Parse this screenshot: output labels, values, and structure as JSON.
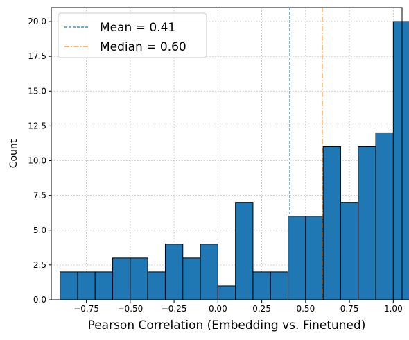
{
  "chart_data": {
    "type": "bar",
    "xlabel": "Pearson Correlation (Embedding vs. Finetuned)",
    "ylabel": "Count",
    "xlim": [
      -0.95,
      1.05
    ],
    "ylim": [
      0,
      21
    ],
    "grid": true,
    "bin_edges": [
      -0.9,
      -0.8,
      -0.7,
      -0.6,
      -0.5,
      -0.4,
      -0.3,
      -0.2,
      -0.1,
      0.0,
      0.1,
      0.2,
      0.3,
      0.4,
      0.5,
      0.6,
      0.7,
      0.8,
      0.9,
      1.0
    ],
    "values": [
      2,
      2,
      2,
      3,
      3,
      2,
      4,
      3,
      4,
      1,
      7,
      2,
      2,
      6,
      6,
      11,
      7,
      11,
      12,
      20
    ],
    "bar_color": "#1f77b4",
    "x_ticks": [
      {
        "value": -0.75,
        "label": "−0.75"
      },
      {
        "value": -0.5,
        "label": "−0.50"
      },
      {
        "value": -0.25,
        "label": "−0.25"
      },
      {
        "value": 0.0,
        "label": "0.00"
      },
      {
        "value": 0.25,
        "label": "0.25"
      },
      {
        "value": 0.5,
        "label": "0.50"
      },
      {
        "value": 0.75,
        "label": "0.75"
      },
      {
        "value": 1.0,
        "label": "1.00"
      }
    ],
    "y_ticks": [
      {
        "value": 0,
        "label": "0.0"
      },
      {
        "value": 2.5,
        "label": "2.5"
      },
      {
        "value": 5,
        "label": "5.0"
      },
      {
        "value": 7.5,
        "label": "7.5"
      },
      {
        "value": 10,
        "label": "10.0"
      },
      {
        "value": 12.5,
        "label": "12.5"
      },
      {
        "value": 15,
        "label": "15.0"
      },
      {
        "value": 17.5,
        "label": "17.5"
      },
      {
        "value": 20,
        "label": "20.0"
      }
    ],
    "reference_lines": [
      {
        "name": "Mean = 0.41",
        "value": 0.41,
        "color": "#1f77b4",
        "style": "dashed"
      },
      {
        "name": "Median = 0.60",
        "value": 0.595,
        "color": "#ff7f0e",
        "style": "dashdot"
      }
    ],
    "legend_placement": "top-left"
  }
}
